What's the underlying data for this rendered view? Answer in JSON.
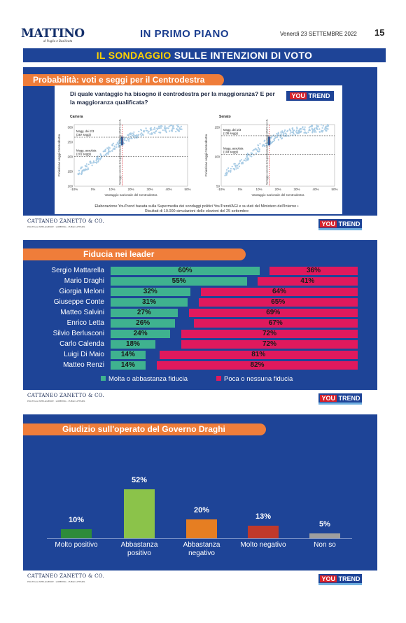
{
  "masthead": {
    "logo": "MATTINO",
    "logo_sub": "di Puglia e Basilicata",
    "section": "IN PRIMO PIANO",
    "date": "Venerdì 23 SETTEMBRE 2022",
    "page": "15"
  },
  "page_title": {
    "highlight": "IL SONDAGGIO",
    "rest": "SULLE INTENZIONI DI VOTO"
  },
  "footer": {
    "company": "CATTANEO ZANETTO & CO.",
    "company_sub": "POLITICAL INTELLIGENCE · LOBBYING · PUBLIC AFFAIRS",
    "brand_you": "YOU",
    "brand_trend": "TREND"
  },
  "panel1": {
    "title": "Probabilità: voti e seggi per il Centrodestra",
    "question": "Di quale vantaggio ha bisogno il centrodestra per la maggioranza? E per la maggioranza qualificata?",
    "note": "Elaborazione YouTrend basata sulla Supermedia dei sondaggi politici YouTrend/AGI e su dati del Ministero dell'Interno • Risultati di 10.000 simulazioni delle elezioni del 25 settembre",
    "colors": {
      "cloud": "#a9cce5",
      "cluster": "#2b6aa8",
      "line": "#d6202a"
    }
  },
  "chart_data": [
    {
      "type": "scatter",
      "title": "Camera",
      "xlabel": "Vantaggio nazionale del Centrodestra",
      "ylabel": "Proiezione seggi Centrodestra",
      "x_ticks": [
        "-10%",
        "0%",
        "10%",
        "20%",
        "30%",
        "40%",
        "50%"
      ],
      "y_ticks": [
        "100",
        "150",
        "200",
        "250",
        "300"
      ],
      "xlim": [
        -10,
        50
      ],
      "ylim": [
        100,
        310
      ],
      "annotations": [
        "Magg. dei 2/3 (267 seggi)",
        "Magg. assoluta (201 seggi)"
      ],
      "vline_label": "Vantaggio secondo le Supermedia dei sondaggi (15,4% vs 15,4%)",
      "thresholds": [
        267,
        201
      ],
      "vline": 15.4
    },
    {
      "type": "scatter",
      "title": "Senato",
      "xlabel": "Vantaggio nazionale del Centrodestra",
      "ylabel": "Proiezione seggi Centrodestra",
      "x_ticks": [
        "-10%",
        "0%",
        "10%",
        "20%",
        "30%",
        "40%",
        "50%"
      ],
      "y_ticks": [
        "50",
        "100",
        "150"
      ],
      "xlim": [
        -10,
        50
      ],
      "ylim": [
        50,
        155
      ],
      "annotations": [
        "Magg. dei 2/3 (136 seggi)",
        "Magg. assoluta (104 seggi)"
      ],
      "vline_label": "Vantaggio secondo le Supermedia dei sondaggi (15,4% vs 15,4%)",
      "thresholds": [
        136,
        104
      ],
      "vline": 15.4
    },
    {
      "type": "bar",
      "title": "Fiducia nei leader",
      "categories": [
        "Sergio Mattarella",
        "Mario Draghi",
        "Giorgia Meloni",
        "Giuseppe Conte",
        "Matteo Salvini",
        "Enrico Letta",
        "Silvio Berlusconi",
        "Carlo Calenda",
        "Luigi Di Maio",
        "Matteo Renzi"
      ],
      "series": [
        {
          "name": "Molta o abbastanza fiducia",
          "values": [
            60,
            55,
            32,
            31,
            27,
            26,
            24,
            18,
            14,
            14
          ],
          "color": "#3fb28f"
        },
        {
          "name": "Poca o nessuna fiducia",
          "values": [
            36,
            41,
            64,
            65,
            69,
            67,
            72,
            72,
            81,
            82
          ],
          "color": "#e0195d"
        }
      ]
    },
    {
      "type": "bar",
      "title": "Giudizio sull'operato del Governo Draghi",
      "categories": [
        "Molto positivo",
        "Abbastanza positivo",
        "Abbastanza negativo",
        "Molto negativo",
        "Non so"
      ],
      "values": [
        10,
        52,
        20,
        13,
        5
      ],
      "colors": [
        "#2e8b3a",
        "#8bc34a",
        "#e67e22",
        "#c0392b",
        "#9e9e9e"
      ]
    }
  ],
  "panel2": {
    "title": "Fiducia nei leader",
    "legend": [
      "Molta o abbastanza fiducia",
      "Poca o nessuna fiducia"
    ]
  },
  "panel3": {
    "title": "Giudizio sull'operato del Governo Draghi",
    "categories": [
      [
        "Molto positivo"
      ],
      [
        "Abbastanza",
        "positivo"
      ],
      [
        "Abbastanza",
        "negativo"
      ],
      [
        "Molto negativo"
      ],
      [
        "Non so"
      ]
    ]
  }
}
